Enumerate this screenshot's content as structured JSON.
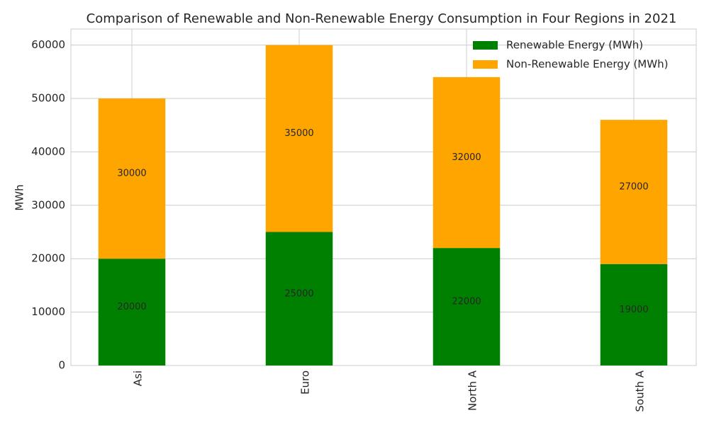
{
  "chart_data": {
    "type": "stacked-bar",
    "title": "Comparison of Renewable and Non-Renewable Energy Consumption in Four Regions in 2021",
    "y_label": "MWh",
    "categories": [
      "Asi",
      "Euro",
      "North A",
      "South A"
    ],
    "series": [
      {
        "name": "Renewable Energy (MWh)",
        "color": "#008000",
        "values": [
          20000,
          25000,
          22000,
          19000
        ]
      },
      {
        "name": "Non-Renewable Energy (MWh)",
        "color": "#ffa500",
        "values": [
          30000,
          35000,
          32000,
          27000
        ]
      }
    ],
    "ylim": [
      0,
      63000
    ],
    "yticks": [
      0,
      10000,
      20000,
      30000,
      40000,
      50000,
      60000
    ],
    "grid": true,
    "legend": "upper-right"
  }
}
